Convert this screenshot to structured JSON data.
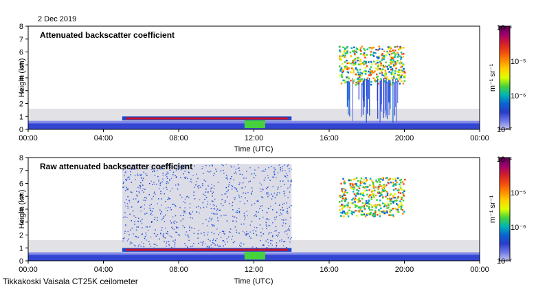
{
  "date_label": "2 Dec 2019",
  "footer_label": "Tikkakoski Vaisala CT25K ceilometer",
  "colorbar": {
    "unit_label": "m⁻¹ sr⁻¹",
    "ticks": [
      "10⁻⁴",
      "10⁻⁵",
      "10⁻⁶",
      "10⁻⁷"
    ],
    "log_scale": true,
    "colors": [
      "#5a0050",
      "#a0006e",
      "#d21e2a",
      "#f04a10",
      "#ff8c00",
      "#ffd200",
      "#dcff00",
      "#46d23c",
      "#00b4b4",
      "#0a64d2",
      "#283cc8",
      "#6e78e6",
      "#c8c8f0"
    ]
  },
  "chart_data": [
    {
      "type": "heatmap",
      "title": "Attenuated backscatter coefficient",
      "xlabel": "Time (UTC)",
      "ylabel": "Height (km)",
      "x_ticks": [
        "00:00",
        "04:00",
        "08:00",
        "12:00",
        "16:00",
        "20:00",
        "00:00"
      ],
      "y_ticks": [
        "0",
        "1",
        "2",
        "3",
        "4",
        "5",
        "6",
        "7",
        "8"
      ],
      "xlim": [
        "00:00",
        "24:00"
      ],
      "ylim": [
        0,
        8
      ],
      "grid": false,
      "features": [
        {
          "name": "boundary layer",
          "start": "00:00",
          "end": "24:00",
          "base_km": 0.0,
          "top_km": 0.5,
          "level": "1e-6"
        },
        {
          "name": "low cloud",
          "start": "05:00",
          "end": "14:00",
          "base_km": 0.7,
          "top_km": 1.0,
          "level": "1e-4"
        },
        {
          "name": "upper cloud",
          "start": "16:30",
          "end": "20:00",
          "base_km": 3.5,
          "top_km": 6.5,
          "level": "1e-5"
        },
        {
          "name": "precipitation",
          "start": "16:40",
          "end": "19:40",
          "base_km": 0.5,
          "top_km": 4.0,
          "level": "1e-6"
        }
      ]
    },
    {
      "type": "heatmap",
      "title": "Raw attenuated backscatter coefficient",
      "xlabel": "Time (UTC)",
      "ylabel": "Height (km)",
      "x_ticks": [
        "00:00",
        "04:00",
        "08:00",
        "12:00",
        "16:00",
        "20:00",
        "00:00"
      ],
      "y_ticks": [
        "0",
        "1",
        "2",
        "3",
        "4",
        "5",
        "6",
        "7",
        "8"
      ],
      "xlim": [
        "00:00",
        "24:00"
      ],
      "ylim": [
        0,
        8
      ],
      "grid": false,
      "features": [
        {
          "name": "boundary layer",
          "start": "00:00",
          "end": "24:00",
          "base_km": 0.0,
          "top_km": 0.5,
          "level": "1e-6"
        },
        {
          "name": "low cloud",
          "start": "05:00",
          "end": "14:00",
          "base_km": 0.7,
          "top_km": 1.0,
          "level": "1e-4"
        },
        {
          "name": "noise",
          "start": "05:00",
          "end": "14:00",
          "base_km": 1.0,
          "top_km": 7.5,
          "level": "1e-7"
        },
        {
          "name": "upper cloud",
          "start": "16:30",
          "end": "20:00",
          "base_km": 3.5,
          "top_km": 6.5,
          "level": "1e-5"
        }
      ]
    }
  ]
}
